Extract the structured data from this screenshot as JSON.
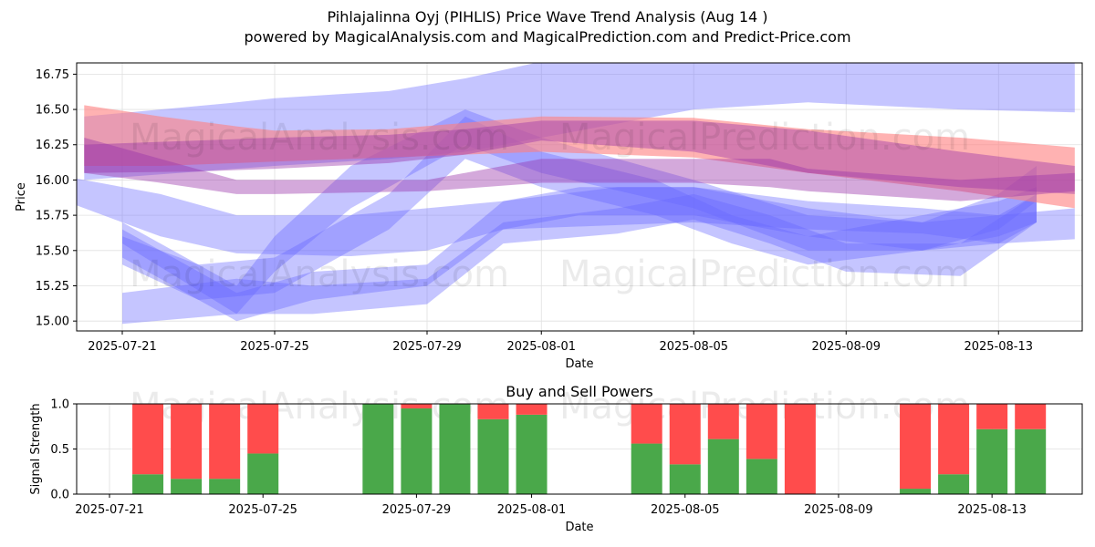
{
  "header": {
    "title": "Pihlajalinna Oyj (PIHLIS) Price Wave Trend Analysis (Aug 14 )",
    "subtitle": "powered by MagicalAnalysis.com and MagicalPrediction.com and Predict-Price.com"
  },
  "watermarks": [
    "MagicalAnalysis.com",
    "MagicalPrediction.com"
  ],
  "colors": {
    "blue_band": "#6666ff",
    "red_band": "#ff7f7f",
    "purple_band": "#9933aa",
    "buy": "#4aa84a",
    "sell": "#ff4c4c",
    "grid": "#e0e0e0"
  },
  "chart_data": [
    {
      "type": "area",
      "xlabel": "Date",
      "ylabel": "Price",
      "x_ticks": [
        "2025-07-21",
        "2025-07-25",
        "2025-07-29",
        "2025-08-01",
        "2025-08-05",
        "2025-08-09",
        "2025-08-13"
      ],
      "y_ticks": [
        15.0,
        15.25,
        15.5,
        15.75,
        16.0,
        16.25,
        16.5,
        16.75
      ],
      "xlim": [
        "2025-07-19",
        "2025-08-15"
      ],
      "ylim": [
        14.93,
        16.83
      ],
      "grid": true,
      "bands": [
        {
          "color": "blue",
          "dates": [
            "2025-07-20",
            "2025-07-24",
            "2025-07-25",
            "2025-07-28",
            "2025-07-30",
            "2025-08-01",
            "2025-08-05",
            "2025-08-08",
            "2025-08-12",
            "2025-08-15"
          ],
          "upper": [
            16.45,
            16.55,
            16.58,
            16.63,
            16.72,
            16.84,
            16.84,
            16.84,
            16.84,
            16.84
          ],
          "lower": [
            16.0,
            16.08,
            16.1,
            16.15,
            16.2,
            16.3,
            16.5,
            16.55,
            16.5,
            16.48
          ]
        },
        {
          "color": "blue",
          "dates": [
            "2025-07-19",
            "2025-07-22",
            "2025-07-24",
            "2025-07-27",
            "2025-07-29",
            "2025-07-31",
            "2025-08-03",
            "2025-08-05",
            "2025-08-08",
            "2025-08-11",
            "2025-08-13",
            "2025-08-15"
          ],
          "upper": [
            16.05,
            15.9,
            15.75,
            15.75,
            15.8,
            15.85,
            15.95,
            15.95,
            15.85,
            15.8,
            15.75,
            15.8
          ],
          "lower": [
            15.9,
            15.6,
            15.48,
            15.46,
            15.5,
            15.65,
            15.68,
            15.7,
            15.65,
            15.62,
            15.55,
            15.58
          ]
        },
        {
          "color": "blue",
          "dates": [
            "2025-07-21",
            "2025-07-24",
            "2025-07-25",
            "2025-07-27",
            "2025-07-30",
            "2025-08-01",
            "2025-08-05",
            "2025-08-08",
            "2025-08-11",
            "2025-08-13",
            "2025-08-14"
          ],
          "upper": [
            15.7,
            15.25,
            15.6,
            16.1,
            16.5,
            16.3,
            16.0,
            15.75,
            15.7,
            15.9,
            16.1
          ],
          "lower": [
            15.55,
            15.05,
            15.35,
            15.8,
            16.25,
            16.05,
            15.8,
            15.5,
            15.5,
            15.65,
            15.85
          ]
        },
        {
          "color": "blue",
          "dates": [
            "2025-07-21",
            "2025-07-24",
            "2025-07-26",
            "2025-07-29",
            "2025-07-31",
            "2025-08-02",
            "2025-08-05",
            "2025-08-08",
            "2025-08-11",
            "2025-08-13",
            "2025-08-14"
          ],
          "upper": [
            15.65,
            15.2,
            15.35,
            15.4,
            15.85,
            15.95,
            15.95,
            15.8,
            15.7,
            15.75,
            15.9
          ],
          "lower": [
            15.45,
            15.0,
            15.15,
            15.25,
            15.65,
            15.75,
            15.75,
            15.6,
            15.5,
            15.55,
            15.7
          ]
        },
        {
          "color": "blue",
          "dates": [
            "2025-07-21",
            "2025-07-24",
            "2025-07-26",
            "2025-07-29",
            "2025-07-31",
            "2025-08-03",
            "2025-08-05",
            "2025-08-07",
            "2025-08-09",
            "2025-08-12",
            "2025-08-14"
          ],
          "upper": [
            15.2,
            15.3,
            15.25,
            15.3,
            15.7,
            15.8,
            15.9,
            15.75,
            15.55,
            15.55,
            15.9
          ],
          "lower": [
            14.98,
            15.05,
            15.05,
            15.12,
            15.55,
            15.62,
            15.72,
            15.55,
            15.35,
            15.32,
            15.7
          ]
        },
        {
          "color": "blue",
          "dates": [
            "2025-07-21",
            "2025-07-23",
            "2025-07-25",
            "2025-07-28",
            "2025-07-30",
            "2025-08-01",
            "2025-08-04",
            "2025-08-06",
            "2025-08-08",
            "2025-08-11",
            "2025-08-13",
            "2025-08-14"
          ],
          "upper": [
            15.6,
            15.4,
            15.45,
            15.9,
            16.45,
            16.2,
            16.0,
            15.75,
            15.6,
            15.75,
            15.85,
            15.95
          ],
          "lower": [
            15.4,
            15.15,
            15.2,
            15.65,
            16.15,
            15.95,
            15.75,
            15.55,
            15.4,
            15.5,
            15.6,
            15.7
          ]
        },
        {
          "color": "red",
          "dates": [
            "2025-07-20",
            "2025-07-22",
            "2025-07-24",
            "2025-07-25",
            "2025-07-28",
            "2025-08-01",
            "2025-08-05",
            "2025-08-08",
            "2025-08-12",
            "2025-08-15"
          ],
          "upper": [
            16.53,
            16.45,
            16.38,
            16.35,
            16.36,
            16.45,
            16.44,
            16.36,
            16.3,
            16.23
          ],
          "lower": [
            16.1,
            16.1,
            16.12,
            16.13,
            16.16,
            16.2,
            16.16,
            16.05,
            15.92,
            15.8
          ]
        },
        {
          "color": "purple",
          "dates": [
            "2025-07-20",
            "2025-07-22",
            "2025-07-24",
            "2025-07-25",
            "2025-07-29",
            "2025-08-01",
            "2025-08-05",
            "2025-08-07",
            "2025-08-08",
            "2025-08-12",
            "2025-08-15"
          ],
          "upper": [
            16.3,
            16.15,
            16.0,
            16.0,
            16.0,
            16.15,
            16.15,
            16.15,
            16.08,
            16.0,
            16.05
          ],
          "lower": [
            16.05,
            15.98,
            15.9,
            15.9,
            15.92,
            15.98,
            15.98,
            15.95,
            15.92,
            15.85,
            15.92
          ]
        },
        {
          "color": "purple",
          "dates": [
            "2025-07-20",
            "2025-07-23",
            "2025-07-25",
            "2025-07-28",
            "2025-07-30",
            "2025-08-01",
            "2025-08-05",
            "2025-08-08",
            "2025-08-12",
            "2025-08-15"
          ],
          "upper": [
            16.25,
            16.28,
            16.3,
            16.32,
            16.36,
            16.42,
            16.42,
            16.35,
            16.2,
            16.1
          ],
          "lower": [
            16.05,
            16.06,
            16.08,
            16.12,
            16.18,
            16.28,
            16.2,
            16.05,
            15.95,
            15.9
          ]
        }
      ]
    },
    {
      "type": "bar",
      "title": "Buy and Sell Powers",
      "xlabel": "Date",
      "ylabel": "Signal Strength",
      "x_ticks": [
        "2025-07-21",
        "2025-07-25",
        "2025-07-29",
        "2025-08-01",
        "2025-08-05",
        "2025-08-09",
        "2025-08-13"
      ],
      "y_ticks": [
        0.0,
        0.5,
        1.0
      ],
      "ylim": [
        0,
        1
      ],
      "grid": true,
      "series": [
        {
          "name": "buy",
          "dates": [
            "2025-07-22",
            "2025-07-23",
            "2025-07-24",
            "2025-07-25",
            "2025-07-28",
            "2025-07-29",
            "2025-07-30",
            "2025-07-31",
            "2025-08-01",
            "2025-08-04",
            "2025-08-05",
            "2025-08-06",
            "2025-08-07",
            "2025-08-08",
            "2025-08-11",
            "2025-08-12",
            "2025-08-13",
            "2025-08-14"
          ],
          "values": [
            0.22,
            0.17,
            0.17,
            0.45,
            1.0,
            0.95,
            1.0,
            0.83,
            0.88,
            0.56,
            0.33,
            0.61,
            0.39,
            0.0,
            0.06,
            0.22,
            0.72,
            0.72
          ]
        },
        {
          "name": "sell",
          "dates": [
            "2025-07-22",
            "2025-07-23",
            "2025-07-24",
            "2025-07-25",
            "2025-07-28",
            "2025-07-29",
            "2025-07-30",
            "2025-07-31",
            "2025-08-01",
            "2025-08-04",
            "2025-08-05",
            "2025-08-06",
            "2025-08-07",
            "2025-08-08",
            "2025-08-11",
            "2025-08-12",
            "2025-08-13",
            "2025-08-14"
          ],
          "values": [
            0.78,
            0.83,
            0.83,
            0.55,
            0.0,
            0.05,
            0.0,
            0.17,
            0.12,
            0.44,
            0.67,
            0.39,
            0.61,
            1.0,
            0.94,
            0.78,
            0.28,
            0.28
          ]
        }
      ]
    }
  ]
}
